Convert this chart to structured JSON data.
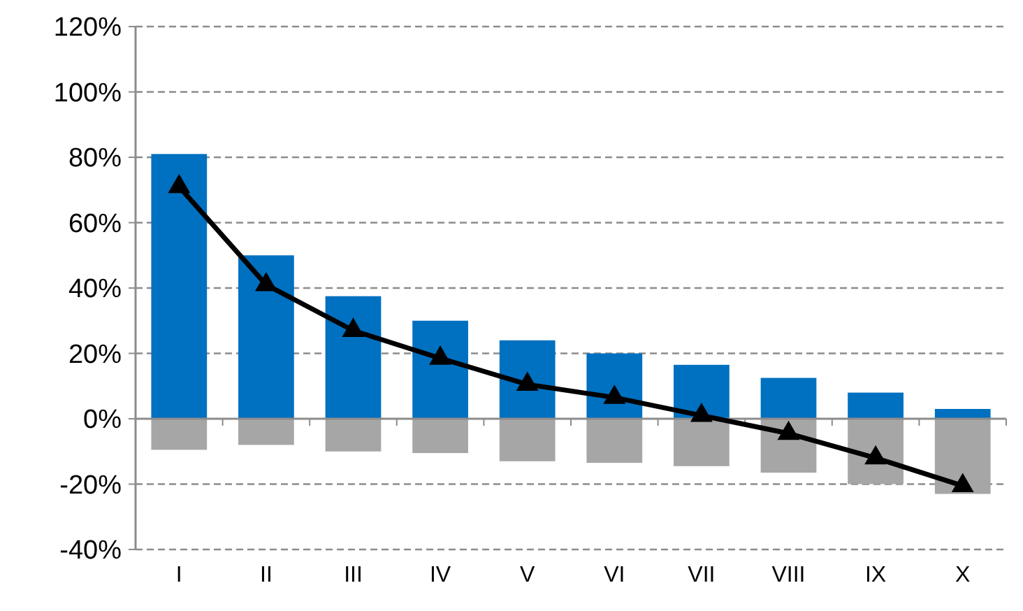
{
  "chart_data": {
    "type": "bar",
    "stacked": true,
    "categories": [
      "I",
      "II",
      "III",
      "IV",
      "V",
      "VI",
      "VII",
      "VIII",
      "IX",
      "X"
    ],
    "series": [
      {
        "color": "#0070c0",
        "values": [
          81,
          50,
          37.5,
          30,
          24,
          20,
          16.5,
          12.5,
          8,
          3
        ]
      },
      {
        "color": "#a6a6a6",
        "values": [
          -9.5,
          -8,
          -10,
          -10.5,
          -13,
          -13.5,
          -14.5,
          -16.5,
          -20,
          -23
        ]
      },
      {
        "type": "line",
        "color": "#000000",
        "marker": "triangle",
        "values": [
          71,
          41,
          27,
          18.5,
          10.5,
          6.5,
          1,
          -4.5,
          -12,
          -20.5
        ]
      }
    ],
    "ylim": [
      -40,
      120
    ],
    "yticks": [
      {
        "value": -40,
        "label": "-40%"
      },
      {
        "value": -20,
        "label": "-20%"
      },
      {
        "value": 0,
        "label": "0%"
      },
      {
        "value": 20,
        "label": "20%"
      },
      {
        "value": 40,
        "label": "40%"
      },
      {
        "value": 60,
        "label": "60%"
      },
      {
        "value": 80,
        "label": "80%"
      },
      {
        "value": 100,
        "label": "100%"
      },
      {
        "value": 120,
        "label": "120%"
      }
    ],
    "grid": "y"
  }
}
